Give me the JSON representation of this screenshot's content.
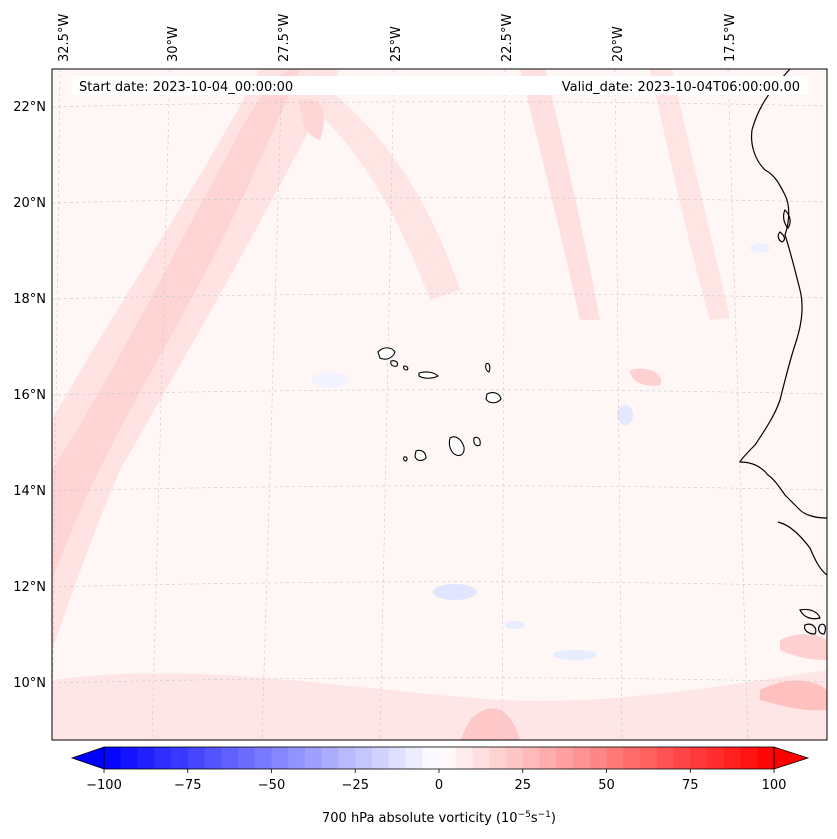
{
  "header": {
    "start_date": "Start date: 2023-10-04_00:00:00",
    "valid_date": "Valid_date: 2023-10-04T06:00:00.00"
  },
  "longitude_labels": [
    "32.5°W",
    "30°W",
    "27.5°W",
    "25°W",
    "22.5°W",
    "20°W",
    "17.5°W"
  ],
  "latitude_labels": [
    "22°N",
    "20°N",
    "18°N",
    "16°N",
    "14°N",
    "12°N",
    "10°N"
  ],
  "colorbar": {
    "label_prefix": "700 hPa absolute vorticity (10",
    "label_exp1": "−5",
    "label_mid": "s",
    "label_exp2": "−1",
    "label_suffix": ")",
    "ticks": [
      "−100",
      "−75",
      "−50",
      "−25",
      "0",
      "25",
      "50",
      "75",
      "100"
    ],
    "min": -100,
    "max": 100,
    "extend": "both",
    "colormap": "bwr",
    "colors": {
      "negative": "#0000ff",
      "zero": "#ffffff",
      "positive": "#ff0000"
    }
  },
  "map": {
    "background_color": "#fff8f8",
    "coastline_color": "#000000",
    "gridline_color": "#c8c8c8"
  }
}
